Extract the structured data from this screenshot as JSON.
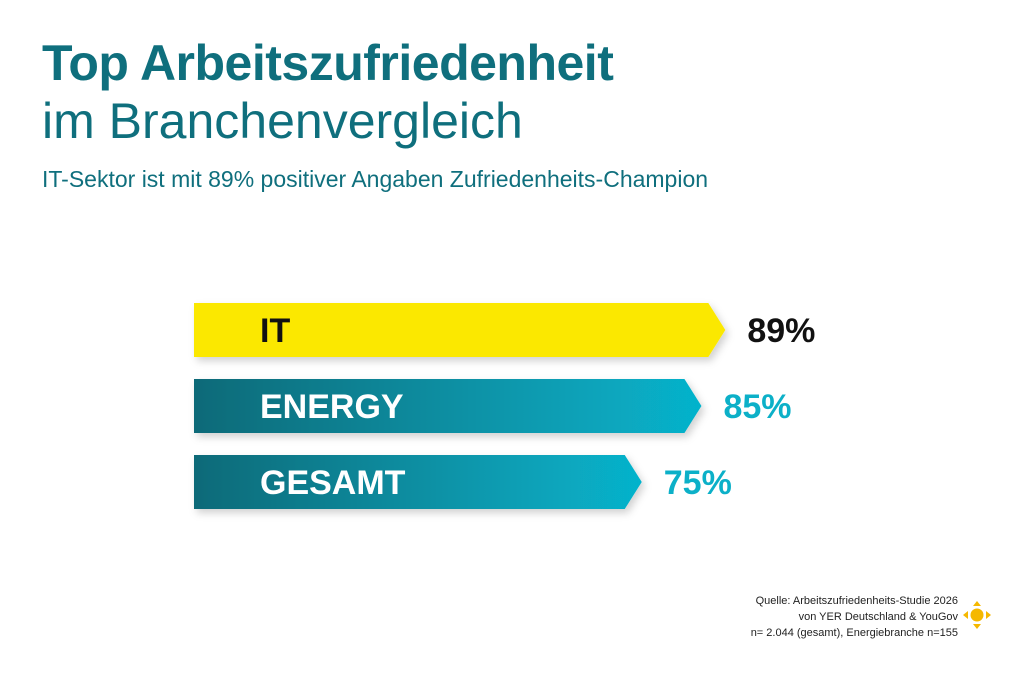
{
  "header": {
    "title_bold": "Top Arbeitszufriedenheit",
    "title_light": "im Branchenvergleich",
    "subtitle": "IT-Sektor ist mit 89% positiver Angaben Zufriedenheits-Champion"
  },
  "chart_data": {
    "type": "bar",
    "orientation": "horizontal",
    "categories": [
      "IT",
      "ENERGY",
      "GESAMT"
    ],
    "values": [
      89,
      85,
      75
    ],
    "value_labels": [
      "89%",
      "85%",
      "75%"
    ],
    "unit": "%",
    "title": "Top Arbeitszufriedenheit im Branchenvergleich",
    "subtitle": "IT-Sektor ist mit 89% positiver Angaben Zufriedenheits-Champion",
    "xlim": [
      0,
      100
    ],
    "grid": false,
    "legend": "none",
    "colors": {
      "IT": "#fbe800",
      "ENERGY_start": "#0d6a78",
      "ENERGY_end": "#06b3cc",
      "GESAMT_start": "#0d6a78",
      "GESAMT_end": "#06b3cc",
      "label_dark": "#111111",
      "label_teal": "#0cb0c8"
    }
  },
  "source": {
    "line1": "Quelle: Arbeitszufriedenheits-Studie 2026",
    "line2": "von YER Deutschland & YouGov",
    "line3": "n= 2.044 (gesamt), Energiebranche n=155"
  },
  "logo": {
    "icon": "yer-logo-icon",
    "color": "#f5b800"
  }
}
